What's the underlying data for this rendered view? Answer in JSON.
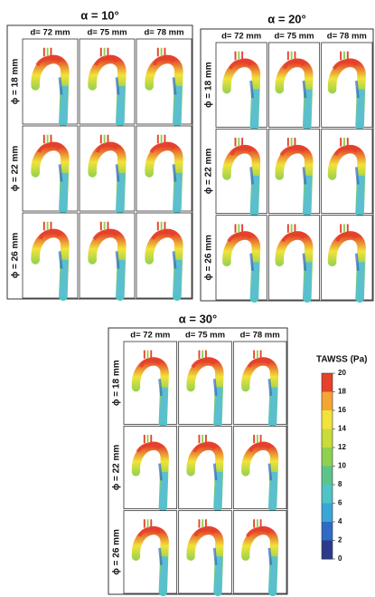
{
  "panels": [
    {
      "title": "α = 10°",
      "columns": [
        "d= 72 mm",
        "d= 75 mm",
        "d= 78 mm"
      ],
      "rows": [
        "ϕ = 18 mm",
        "ϕ = 22 mm",
        "ϕ = 26 mm"
      ]
    },
    {
      "title": "α = 20°",
      "columns": [
        "d= 72 mm",
        "d= 75 mm",
        "d= 78 mm"
      ],
      "rows": [
        "ϕ = 18 mm",
        "ϕ = 22 mm",
        "ϕ = 26 mm"
      ]
    },
    {
      "title": "α = 30°",
      "columns": [
        "d= 72 mm",
        "d= 75 mm",
        "d= 78 mm"
      ],
      "rows": [
        "ϕ = 18 mm",
        "ϕ = 22 mm",
        "ϕ = 26 mm"
      ]
    }
  ],
  "colorbar": {
    "title": "TAWSS (Pa)",
    "ticks": [
      20,
      18,
      16,
      14,
      12,
      10,
      8,
      6,
      4,
      2,
      0
    ]
  }
}
